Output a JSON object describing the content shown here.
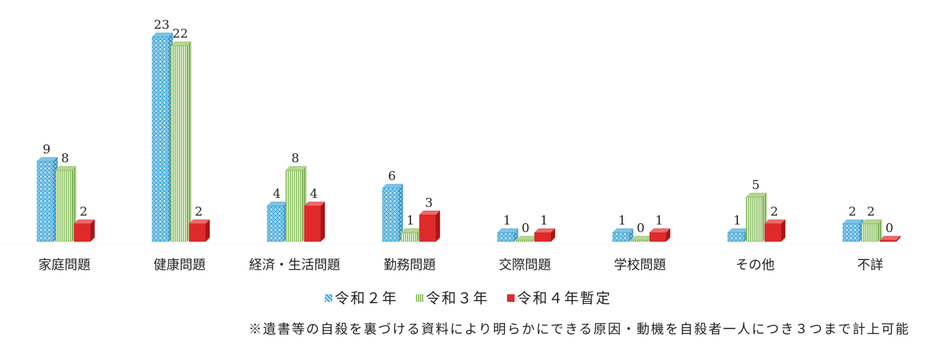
{
  "chart_data": {
    "type": "bar",
    "categories": [
      "家庭問題",
      "健康問題",
      "経済・生活問題",
      "勤務問題",
      "交際問題",
      "学校問題",
      "その他",
      "不詳"
    ],
    "series": [
      {
        "name": "令和２年",
        "values": [
          9,
          23,
          4,
          6,
          1,
          1,
          1,
          2
        ]
      },
      {
        "name": "令和３年",
        "values": [
          8,
          22,
          8,
          1,
          0,
          0,
          5,
          2
        ]
      },
      {
        "name": "令和４年暫定",
        "values": [
          2,
          2,
          4,
          3,
          1,
          1,
          2,
          0
        ]
      }
    ],
    "data_labels": [
      [
        "9",
        "23",
        "4",
        "6",
        "1",
        "1",
        "1",
        "2"
      ],
      [
        "8",
        "22",
        "8",
        "1",
        "0",
        "0",
        "5",
        "2"
      ],
      [
        "2",
        "2",
        "4",
        "3",
        "1",
        "1",
        "2",
        "0"
      ]
    ],
    "ylim": [
      0,
      25
    ],
    "grid": false,
    "legend_position": "bottom",
    "colors": [
      "#35a4d8",
      "#7db84e",
      "#e02a2a"
    ]
  },
  "footnote": "※遺書等の自殺を裏づける資料により明らかにできる原因・動機を自殺者一人につき３つまで計上可能"
}
